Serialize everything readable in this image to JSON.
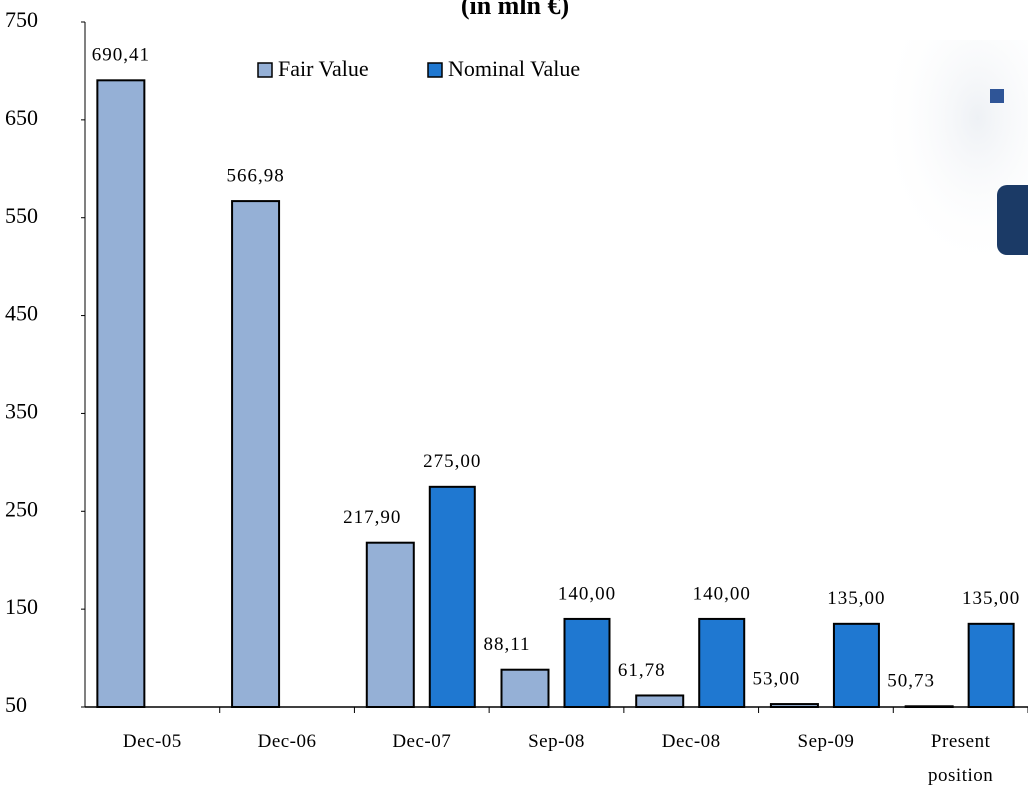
{
  "chart_data": {
    "type": "bar",
    "title": "(in mln €)",
    "categories": [
      "Dec-05",
      "Dec-06",
      "Dec-07",
      "Sep-08",
      "Dec-08",
      "Sep-09",
      "Present position"
    ],
    "series": [
      {
        "name": "Fair Value",
        "color": "#95b0d6",
        "values": [
          690.41,
          566.98,
          217.9,
          88.11,
          61.78,
          53.0,
          50.73
        ],
        "value_labels": [
          "690,41",
          "566,98",
          "217,90",
          "88,11",
          "61,78",
          "53,00",
          "50,73"
        ]
      },
      {
        "name": "Nominal Value",
        "color": "#1f78d1",
        "values": [
          null,
          null,
          275.0,
          140.0,
          140.0,
          135.0,
          135.0
        ],
        "value_labels": [
          null,
          null,
          "275,00",
          "140,00",
          "140,00",
          "135,00",
          "135,00"
        ]
      }
    ],
    "ylim": [
      50,
      750
    ],
    "yticks": [
      50,
      150,
      250,
      350,
      450,
      550,
      650,
      750
    ],
    "legend": "top"
  }
}
